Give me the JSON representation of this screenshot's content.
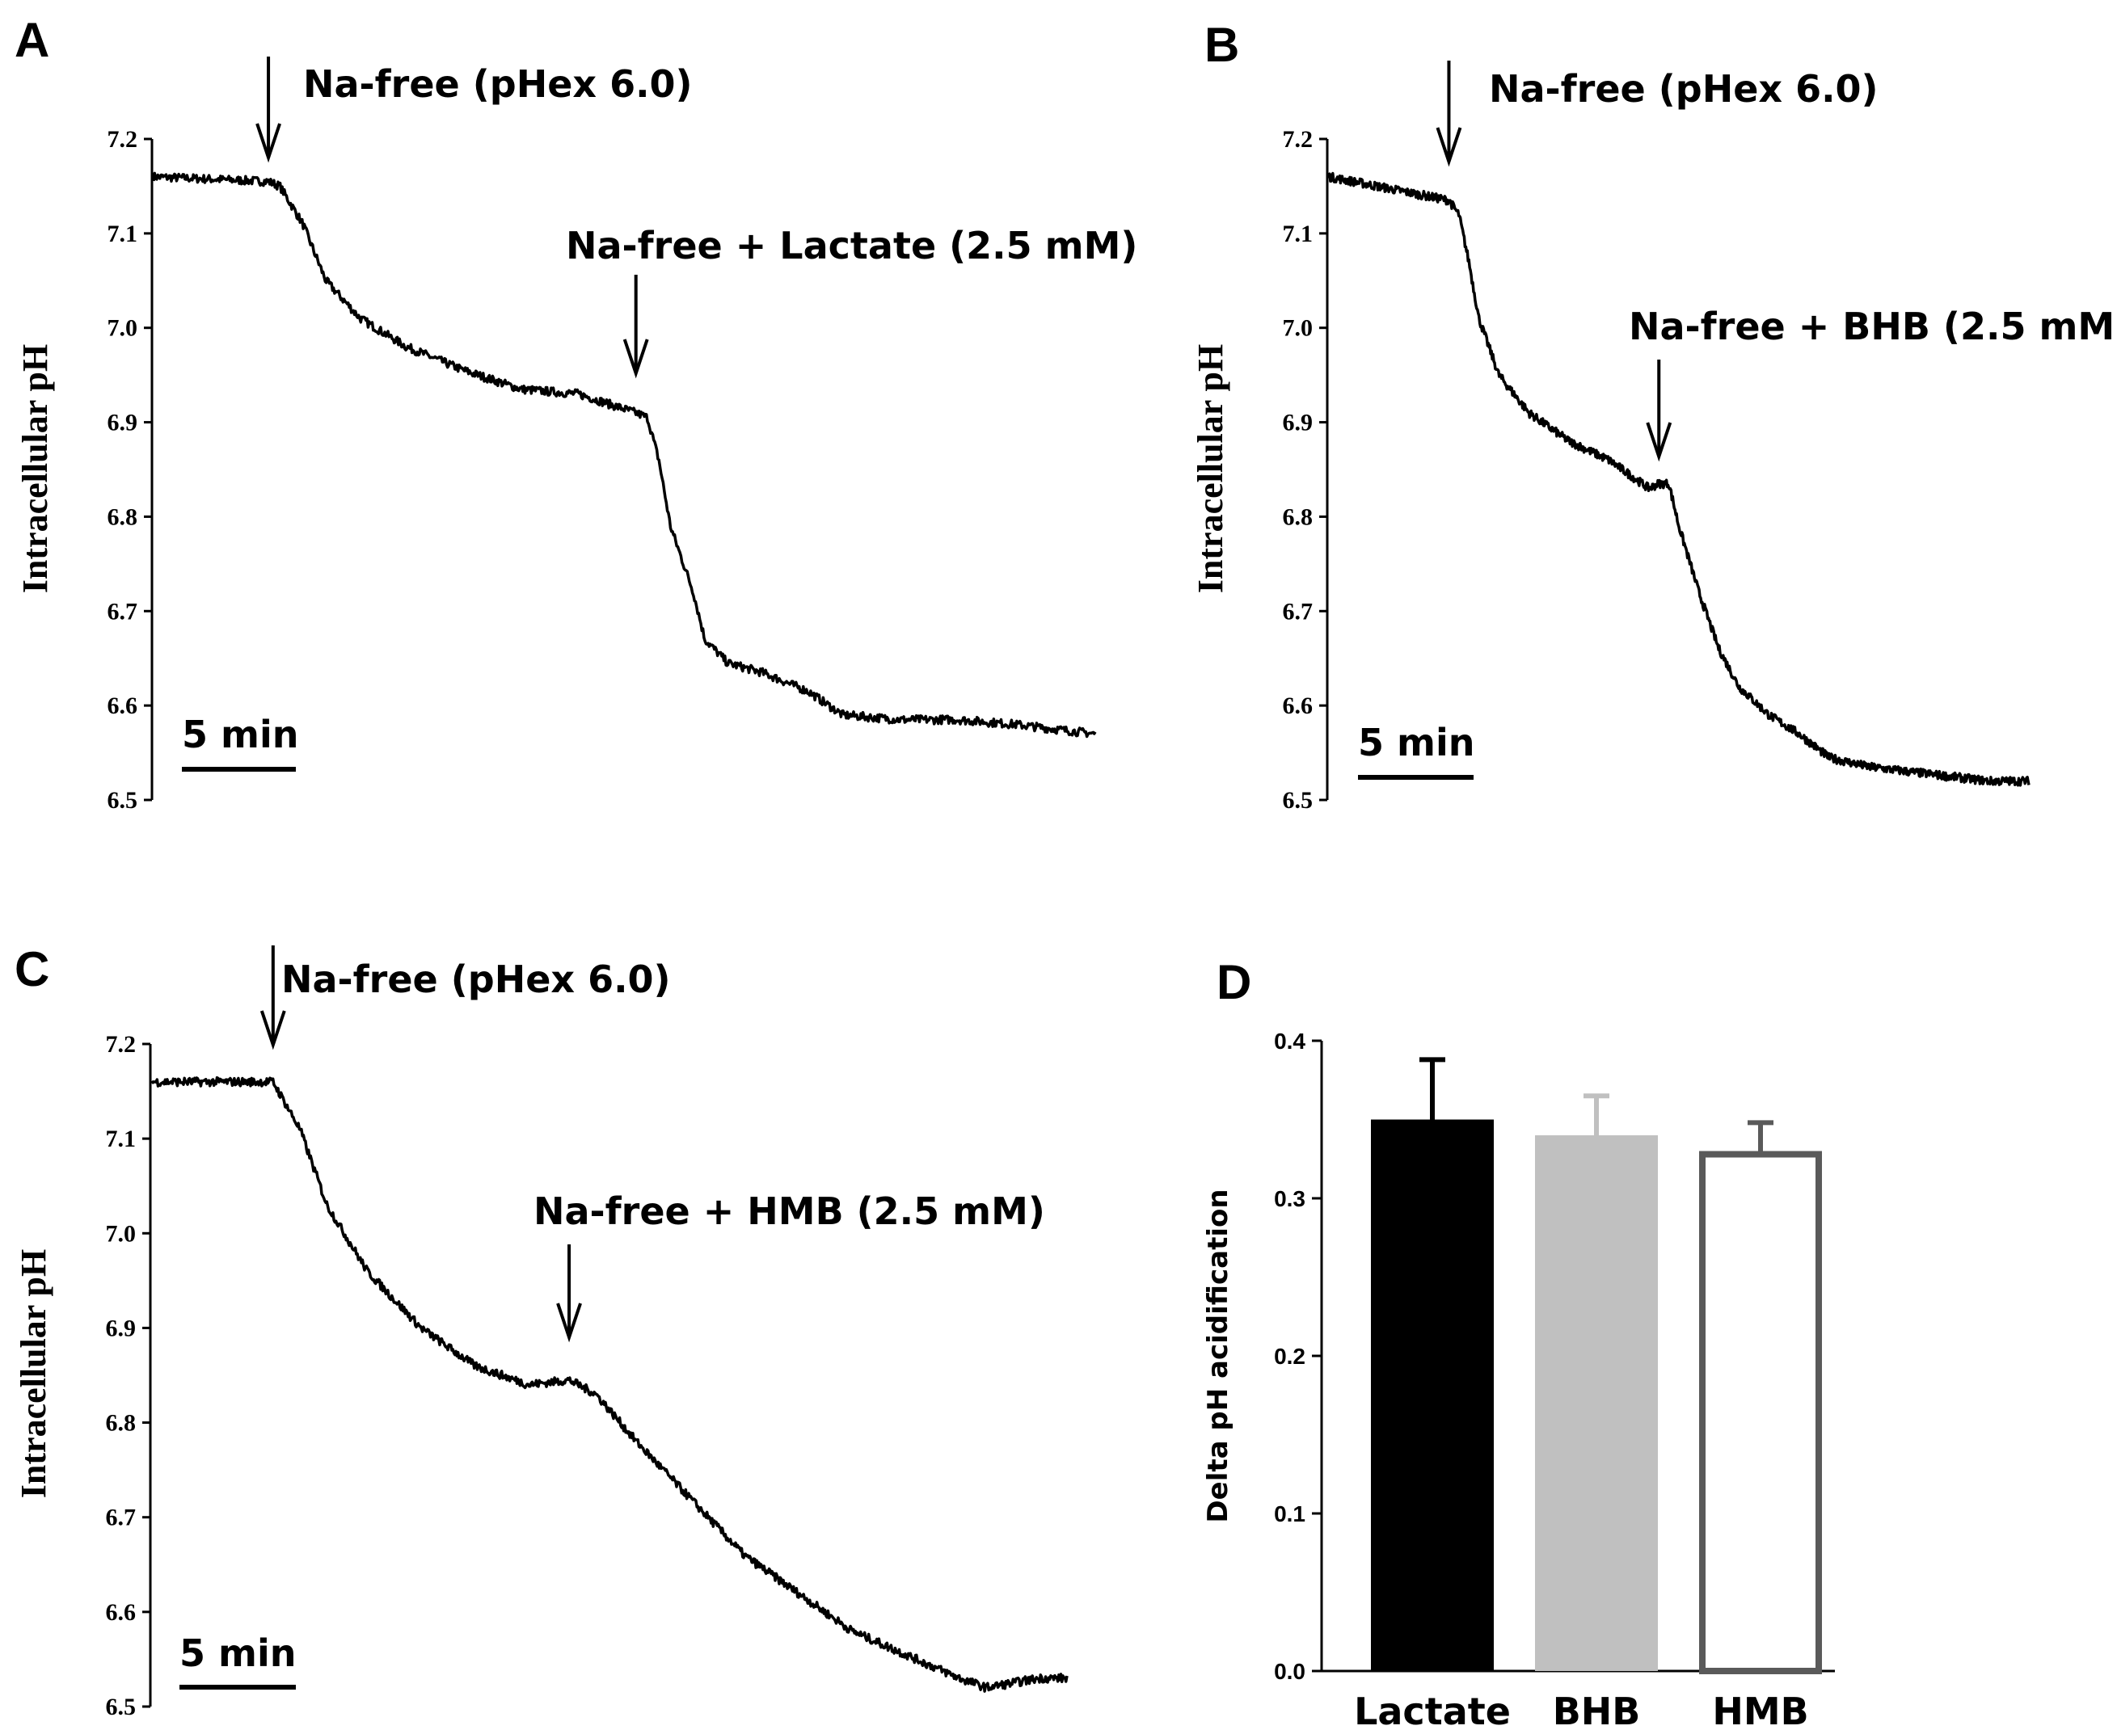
{
  "chart_data": [
    {
      "panel": "A",
      "type": "line",
      "ylabel": "Intracellular pH",
      "ylim": [
        6.5,
        7.2
      ],
      "yticks": [
        "7.2",
        "7.1",
        "7.0",
        "6.9",
        "6.8",
        "6.7",
        "6.6",
        "6.5"
      ],
      "scale_bar": "5 min",
      "annotations": [
        {
          "text": "Na-free (pHex 6.0)",
          "t": 10
        },
        {
          "text": "Na-free + Lactate (2.5 mM)",
          "t": 42
        }
      ],
      "series": [
        {
          "name": "pHi",
          "t": [
            0,
            10,
            11,
            13,
            15,
            18,
            22,
            27,
            32,
            37,
            42,
            43,
            44,
            45,
            47,
            48,
            50,
            53,
            55,
            57,
            60,
            65,
            70,
            75,
            82
          ],
          "values": [
            7.16,
            7.155,
            7.15,
            7.11,
            7.05,
            7.01,
            6.98,
            6.955,
            6.935,
            6.93,
            6.91,
            6.905,
            6.86,
            6.79,
            6.72,
            6.67,
            6.645,
            6.635,
            6.625,
            6.615,
            6.59,
            6.585,
            6.585,
            6.58,
            6.57
          ]
        }
      ]
    },
    {
      "panel": "B",
      "type": "line",
      "ylabel": "Intracellular pH",
      "ylim": [
        6.5,
        7.2
      ],
      "yticks": [
        "7.2",
        "7.1",
        "7.0",
        "6.9",
        "6.8",
        "6.7",
        "6.6",
        "6.5"
      ],
      "scale_bar": "5 min",
      "annotations": [
        {
          "text": "Na-free (pHex 6.0)",
          "t": 12
        },
        {
          "text": "Na-free + BHB (2.5 mM)",
          "t": 33
        }
      ],
      "series": [
        {
          "name": "pHi",
          "t": [
            0,
            12,
            13,
            14,
            15,
            17,
            20,
            24,
            28,
            32,
            33,
            34,
            35,
            37,
            39,
            41,
            44,
            47,
            50,
            54,
            58,
            62,
            66,
            70
          ],
          "values": [
            7.16,
            7.135,
            7.12,
            7.07,
            7.01,
            6.95,
            6.91,
            6.88,
            6.86,
            6.83,
            6.835,
            6.835,
            6.79,
            6.72,
            6.66,
            6.62,
            6.59,
            6.57,
            6.545,
            6.535,
            6.53,
            6.525,
            6.52,
            6.52
          ]
        }
      ]
    },
    {
      "panel": "C",
      "type": "line",
      "ylabel": "Intracellular pH",
      "ylim": [
        6.5,
        7.2
      ],
      "yticks": [
        "7.2",
        "7.1",
        "7.0",
        "6.9",
        "6.8",
        "6.7",
        "6.6",
        "6.5"
      ],
      "scale_bar": "5 min",
      "annotations": [
        {
          "text": "Na-free (pHex 6.0)",
          "t": 9
        },
        {
          "text": "Na-free + HMB (2.5 mM)",
          "t": 31
        }
      ],
      "series": [
        {
          "name": "pHi",
          "t": [
            0,
            9,
            11,
            13,
            16,
            20,
            24,
            28,
            31,
            33,
            36,
            40,
            44,
            48,
            52,
            56,
            60,
            62,
            64,
            66,
            68
          ],
          "values": [
            7.16,
            7.16,
            7.11,
            7.03,
            6.96,
            6.9,
            6.86,
            6.84,
            6.845,
            6.83,
            6.78,
            6.72,
            6.66,
            6.62,
            6.58,
            6.555,
            6.53,
            6.52,
            6.525,
            6.53,
            6.53
          ]
        }
      ]
    },
    {
      "panel": "D",
      "type": "bar",
      "ylabel": "Delta pH acidification",
      "ylim": [
        0.0,
        0.4
      ],
      "yticks": [
        "0.0",
        "0.1",
        "0.2",
        "0.3",
        "0.4"
      ],
      "categories": [
        "Lactate",
        "BHB",
        "HMB"
      ],
      "values": [
        0.35,
        0.34,
        0.33
      ],
      "errors": [
        0.038,
        0.025,
        0.018
      ],
      "colors": [
        "#000000",
        "#c0c0c0",
        "#ffffff"
      ],
      "edge_colors": [
        "#000000",
        "#c0c0c0",
        "#5a5a5a"
      ]
    }
  ]
}
